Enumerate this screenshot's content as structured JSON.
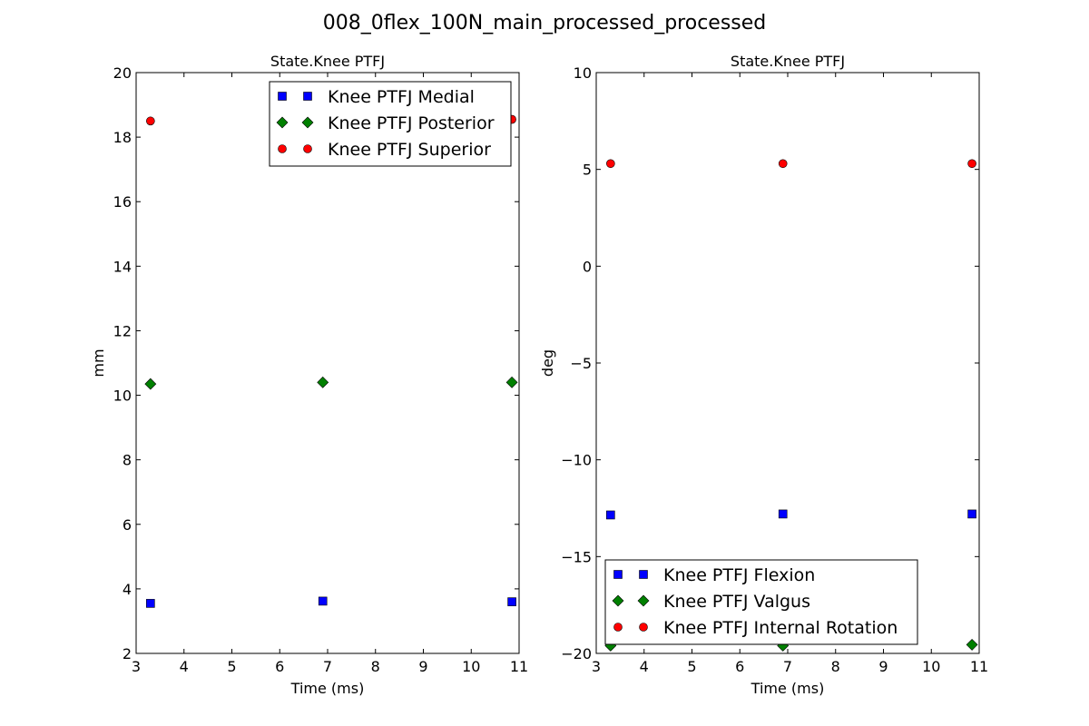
{
  "figure": {
    "suptitle": "008_0flex_100N_main_processed_processed"
  },
  "chart_data": [
    {
      "type": "scatter",
      "title": "State.Knee PTFJ",
      "xlabel": "Time (ms)",
      "ylabel": "mm",
      "xlim": [
        3,
        11
      ],
      "ylim": [
        2,
        20
      ],
      "xticks": [
        "3",
        "4",
        "5",
        "6",
        "7",
        "8",
        "9",
        "10",
        "11"
      ],
      "yticks": [
        "2",
        "4",
        "6",
        "8",
        "10",
        "12",
        "14",
        "16",
        "18",
        "20"
      ],
      "grid": false,
      "legend_position": "upper-right",
      "series": [
        {
          "name": "Knee PTFJ Medial",
          "marker": "square",
          "color": "#0000ff",
          "x": [
            3.3,
            6.9,
            10.85
          ],
          "y": [
            3.55,
            3.62,
            3.6
          ]
        },
        {
          "name": "Knee PTFJ Posterior",
          "marker": "diamond",
          "color": "#008000",
          "x": [
            3.3,
            6.9,
            10.85
          ],
          "y": [
            10.35,
            10.4,
            10.4
          ]
        },
        {
          "name": "Knee PTFJ Superior",
          "marker": "circle",
          "color": "#ff0000",
          "x": [
            3.3,
            6.9,
            10.85
          ],
          "y": [
            18.5,
            18.55,
            18.55
          ]
        }
      ]
    },
    {
      "type": "scatter",
      "title": "State.Knee PTFJ",
      "xlabel": "Time (ms)",
      "ylabel": "deg",
      "xlim": [
        3,
        11
      ],
      "ylim": [
        -20,
        10
      ],
      "xticks": [
        "3",
        "4",
        "5",
        "6",
        "7",
        "8",
        "9",
        "10",
        "11"
      ],
      "yticks": [
        "−20",
        "−15",
        "−10",
        "−5",
        "0",
        "5",
        "10"
      ],
      "grid": false,
      "legend_position": "lower-left",
      "series": [
        {
          "name": "Knee PTFJ Flexion",
          "marker": "square",
          "color": "#0000ff",
          "x": [
            3.3,
            6.9,
            10.85
          ],
          "y": [
            -12.85,
            -12.8,
            -12.8
          ]
        },
        {
          "name": "Knee PTFJ Valgus",
          "marker": "diamond",
          "color": "#008000",
          "x": [
            3.3,
            6.9,
            10.85
          ],
          "y": [
            -19.6,
            -19.6,
            -19.55
          ]
        },
        {
          "name": "Knee PTFJ Internal Rotation",
          "marker": "circle",
          "color": "#ff0000",
          "x": [
            3.3,
            6.9,
            10.85
          ],
          "y": [
            5.3,
            5.3,
            5.3
          ]
        }
      ]
    }
  ]
}
